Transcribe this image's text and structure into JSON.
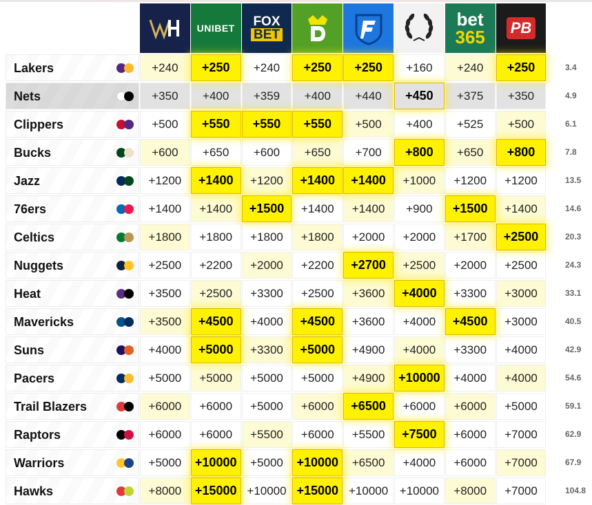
{
  "sportsbooks": [
    {
      "name": "William Hill",
      "icon": "william-hill-logo",
      "color": "#17224a"
    },
    {
      "name": "Unibet",
      "label": "UNIBET",
      "icon": "unibet-logo",
      "color": "#16793c"
    },
    {
      "name": "FOX Bet",
      "label_top": "FOX",
      "label_bottom": "BET",
      "icon": "foxbet-logo",
      "color": "#0f2a4e"
    },
    {
      "name": "DraftKings",
      "icon": "draftkings-logo",
      "color": "#53a026"
    },
    {
      "name": "FanDuel",
      "icon": "fanduel-logo",
      "color": "#1d77de"
    },
    {
      "name": "Caesars",
      "icon": "caesars-logo",
      "color": "#f2f2f2"
    },
    {
      "name": "bet365",
      "label_top": "bet",
      "label_bottom": "365",
      "icon": "bet365-logo",
      "color": "#1c7a56"
    },
    {
      "name": "PointsBet",
      "label": "PB",
      "icon": "pointsbet-logo",
      "color": "#1b1b1b"
    }
  ],
  "teams": [
    {
      "name": "Lakers",
      "colors": [
        "#552583",
        "#fdb927"
      ],
      "odds": [
        "+240",
        "+250",
        "+240",
        "+250",
        "+250",
        "+160",
        "+240",
        "+250"
      ],
      "best": [
        1,
        3,
        4,
        7
      ],
      "prob": "3.4"
    },
    {
      "name": "Nets",
      "colors": [
        "#ffffff",
        "#000000"
      ],
      "odds": [
        "+350",
        "+400",
        "+359",
        "+400",
        "+440",
        "+450",
        "+375",
        "+350"
      ],
      "best": [
        5
      ],
      "prob": "4.9"
    },
    {
      "name": "Clippers",
      "colors": [
        "#c8102e",
        "#552583"
      ],
      "odds": [
        "+500",
        "+550",
        "+550",
        "+550",
        "+500",
        "+400",
        "+525",
        "+500"
      ],
      "best": [
        1,
        2,
        3
      ],
      "prob": "6.1"
    },
    {
      "name": "Bucks",
      "colors": [
        "#00471b",
        "#eee1c6"
      ],
      "odds": [
        "+600",
        "+650",
        "+600",
        "+650",
        "+700",
        "+800",
        "+650",
        "+800"
      ],
      "best": [
        5,
        7
      ],
      "prob": "7.8"
    },
    {
      "name": "Jazz",
      "colors": [
        "#002b5c",
        "#00471b"
      ],
      "odds": [
        "+1200",
        "+1400",
        "+1200",
        "+1400",
        "+1400",
        "+1000",
        "+1200",
        "+1200"
      ],
      "best": [
        1,
        3,
        4
      ],
      "prob": "13.5"
    },
    {
      "name": "76ers",
      "colors": [
        "#006bb6",
        "#ed174c"
      ],
      "odds": [
        "+1400",
        "+1400",
        "+1500",
        "+1400",
        "+1400",
        "+900",
        "+1500",
        "+1400"
      ],
      "best": [
        2,
        6
      ],
      "prob": "14.6"
    },
    {
      "name": "Celtics",
      "colors": [
        "#007a33",
        "#ba9653"
      ],
      "odds": [
        "+1800",
        "+1800",
        "+1800",
        "+1800",
        "+2000",
        "+2000",
        "+1700",
        "+2500"
      ],
      "best": [
        7
      ],
      "prob": "20.3"
    },
    {
      "name": "Nuggets",
      "colors": [
        "#0e2240",
        "#fec524"
      ],
      "odds": [
        "+2500",
        "+2200",
        "+2000",
        "+2200",
        "+2700",
        "+2500",
        "+2000",
        "+2500"
      ],
      "best": [
        4
      ],
      "prob": "24.3"
    },
    {
      "name": "Heat",
      "colors": [
        "#5a2d81",
        "#000000"
      ],
      "odds": [
        "+3500",
        "+2500",
        "+3300",
        "+2500",
        "+3600",
        "+4000",
        "+3300",
        "+3000"
      ],
      "best": [
        5
      ],
      "prob": "33.1"
    },
    {
      "name": "Mavericks",
      "colors": [
        "#00538c",
        "#002b5e"
      ],
      "odds": [
        "+3500",
        "+4500",
        "+4000",
        "+4500",
        "+3600",
        "+4000",
        "+4500",
        "+3000"
      ],
      "best": [
        1,
        3,
        6
      ],
      "prob": "40.5"
    },
    {
      "name": "Suns",
      "colors": [
        "#1d1160",
        "#e56020"
      ],
      "odds": [
        "+4000",
        "+5000",
        "+3300",
        "+5000",
        "+4900",
        "+4000",
        "+3300",
        "+4000"
      ],
      "best": [
        1,
        3
      ],
      "prob": "42.9"
    },
    {
      "name": "Pacers",
      "colors": [
        "#002d62",
        "#fdbb30"
      ],
      "odds": [
        "+5000",
        "+5000",
        "+5000",
        "+5000",
        "+4900",
        "+10000",
        "+4000",
        "+4000"
      ],
      "best": [
        5
      ],
      "prob": "54.6"
    },
    {
      "name": "Trail Blazers",
      "colors": [
        "#e03a3e",
        "#000000"
      ],
      "odds": [
        "+6000",
        "+6000",
        "+5000",
        "+6000",
        "+6500",
        "+6000",
        "+6000",
        "+5000"
      ],
      "best": [
        4
      ],
      "prob": "59.1"
    },
    {
      "name": "Raptors",
      "colors": [
        "#000000",
        "#ce1141"
      ],
      "odds": [
        "+6000",
        "+6000",
        "+5500",
        "+6000",
        "+5500",
        "+7500",
        "+6000",
        "+7000"
      ],
      "best": [
        5
      ],
      "prob": "62.9"
    },
    {
      "name": "Warriors",
      "colors": [
        "#ffc72c",
        "#1d428a"
      ],
      "odds": [
        "+5000",
        "+10000",
        "+5000",
        "+10000",
        "+6500",
        "+4000",
        "+6000",
        "+7000"
      ],
      "best": [
        1,
        3
      ],
      "prob": "67.9"
    },
    {
      "name": "Hawks",
      "colors": [
        "#e03a3e",
        "#c1d32f"
      ],
      "odds": [
        "+8000",
        "+15000",
        "+10000",
        "+15000",
        "+10000",
        "+10000",
        "+8000",
        "+7000"
      ],
      "best": [
        1,
        3
      ],
      "prob": "104.8"
    }
  ]
}
